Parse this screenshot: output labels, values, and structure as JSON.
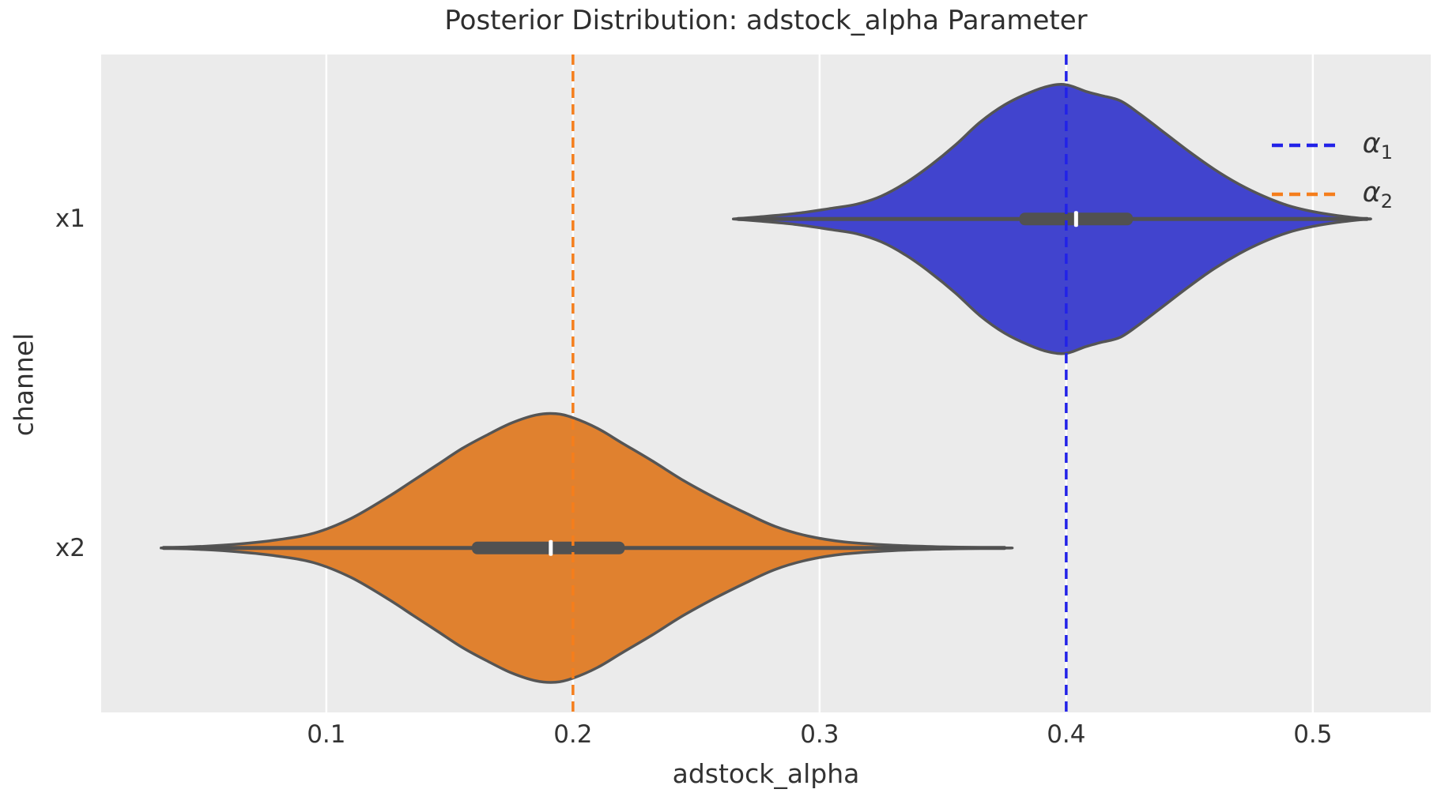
{
  "title": "Posterior Distribution: adstock_alpha Parameter",
  "colors": {
    "figure_background": "#ffffff",
    "axes_background": "#ebebeb",
    "gridline": "#ffffff",
    "text": "#333333",
    "violin_outline": "#555555",
    "inner_box": "#515151",
    "median_tick": "#ffffff",
    "violin_fill_x1": "#4144ce",
    "violin_fill_x2": "#e0812f",
    "ref_line_alpha1": "#2222e8",
    "ref_line_alpha2": "#f57e1c"
  },
  "legend": {
    "entries": [
      {
        "char": "α",
        "sub": "1",
        "color": "#2222e8",
        "style": "dashed"
      },
      {
        "char": "α",
        "sub": "2",
        "color": "#f57e1c",
        "style": "dashed"
      }
    ]
  },
  "chart_data": {
    "type": "violin",
    "orientation": "horizontal",
    "title": "Posterior Distribution: adstock_alpha Parameter",
    "xlabel": "adstock_alpha",
    "ylabel": "channel",
    "categories": [
      "x1",
      "x2"
    ],
    "xlim": [
      0.0087,
      0.5478
    ],
    "grid": "vertical-only, white lines on light gray axes",
    "legend_position": "upper right",
    "x_ticks": [
      {
        "value": 0.1,
        "label": "0.1"
      },
      {
        "value": 0.2,
        "label": "0.2"
      },
      {
        "value": 0.3,
        "label": "0.3"
      },
      {
        "value": 0.4,
        "label": "0.4"
      },
      {
        "value": 0.5,
        "label": "0.5"
      }
    ],
    "violins": [
      {
        "channel": "x1",
        "fill": "#4144ce",
        "stats": {
          "min": 0.265,
          "whisker_low": 0.267,
          "q1": 0.381,
          "median": 0.404,
          "q3": 0.427,
          "whisker_high": 0.522,
          "max": 0.522
        },
        "kde_profile": [
          [
            0.265,
            0.0
          ],
          [
            0.275,
            0.015
          ],
          [
            0.29,
            0.04
          ],
          [
            0.305,
            0.08
          ],
          [
            0.315,
            0.11
          ],
          [
            0.325,
            0.17
          ],
          [
            0.335,
            0.27
          ],
          [
            0.345,
            0.4
          ],
          [
            0.355,
            0.55
          ],
          [
            0.365,
            0.72
          ],
          [
            0.375,
            0.85
          ],
          [
            0.385,
            0.94
          ],
          [
            0.393,
            0.99
          ],
          [
            0.4,
            1.0
          ],
          [
            0.408,
            0.95
          ],
          [
            0.414,
            0.92
          ],
          [
            0.422,
            0.88
          ],
          [
            0.43,
            0.78
          ],
          [
            0.44,
            0.64
          ],
          [
            0.45,
            0.5
          ],
          [
            0.46,
            0.37
          ],
          [
            0.47,
            0.26
          ],
          [
            0.48,
            0.17
          ],
          [
            0.49,
            0.1
          ],
          [
            0.5,
            0.055
          ],
          [
            0.51,
            0.025
          ],
          [
            0.522,
            0.0
          ]
        ]
      },
      {
        "channel": "x2",
        "fill": "#e0812f",
        "stats": {
          "min": 0.033,
          "whisker_low": 0.034,
          "q1": 0.159,
          "median": 0.191,
          "q3": 0.221,
          "whisker_high": 0.375,
          "max": 0.375
        },
        "kde_profile": [
          [
            0.033,
            0.0
          ],
          [
            0.05,
            0.012
          ],
          [
            0.065,
            0.03
          ],
          [
            0.08,
            0.06
          ],
          [
            0.095,
            0.11
          ],
          [
            0.11,
            0.22
          ],
          [
            0.125,
            0.38
          ],
          [
            0.135,
            0.5
          ],
          [
            0.145,
            0.62
          ],
          [
            0.155,
            0.74
          ],
          [
            0.165,
            0.84
          ],
          [
            0.175,
            0.93
          ],
          [
            0.185,
            0.99
          ],
          [
            0.193,
            1.0
          ],
          [
            0.2,
            0.97
          ],
          [
            0.21,
            0.89
          ],
          [
            0.22,
            0.78
          ],
          [
            0.232,
            0.65
          ],
          [
            0.245,
            0.5
          ],
          [
            0.258,
            0.37
          ],
          [
            0.27,
            0.26
          ],
          [
            0.282,
            0.16
          ],
          [
            0.295,
            0.09
          ],
          [
            0.31,
            0.045
          ],
          [
            0.33,
            0.02
          ],
          [
            0.35,
            0.008
          ],
          [
            0.375,
            0.0
          ]
        ]
      }
    ],
    "reference_lines": [
      {
        "label": "α1",
        "value": 0.4,
        "color": "#2222e8",
        "style": "dashed"
      },
      {
        "label": "α2",
        "value": 0.2,
        "color": "#f57e1c",
        "style": "dashed"
      }
    ]
  }
}
